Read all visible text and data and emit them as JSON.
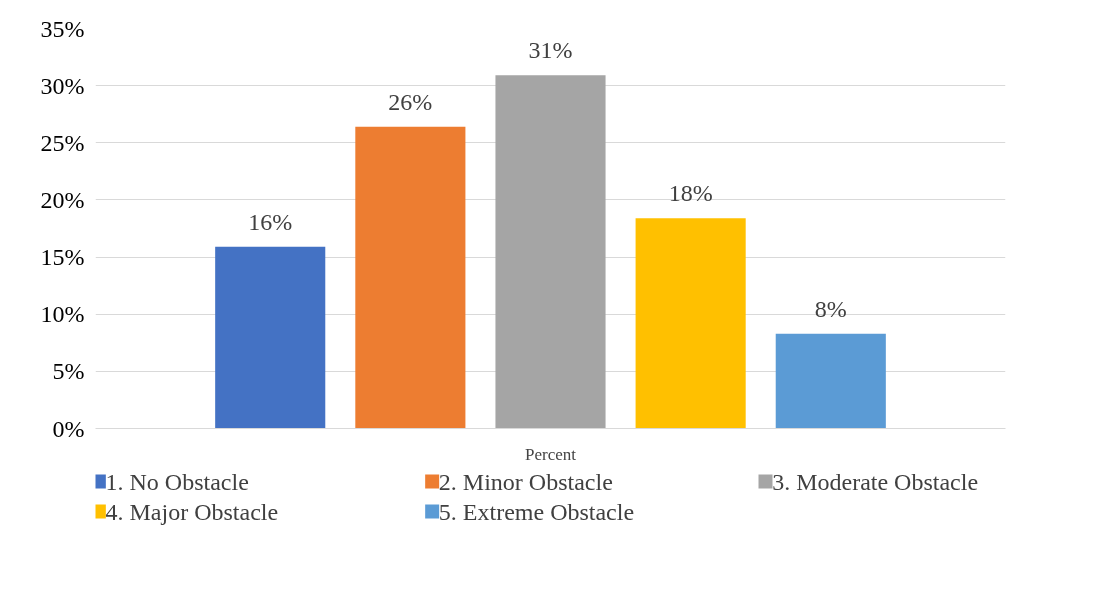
{
  "chart_data": {
    "type": "bar",
    "categories": [
      "Percent"
    ],
    "series": [
      {
        "name": "1. No Obstacle",
        "color": "#4472c4",
        "values": [
          15.9
        ]
      },
      {
        "name": "2. Minor Obstacle",
        "color": "#ed7d31",
        "values": [
          26.4
        ]
      },
      {
        "name": "3. Moderate Obstacle",
        "color": "#a5a5a5",
        "values": [
          30.9
        ]
      },
      {
        "name": "4. Major Obstacle",
        "color": "#ffc000",
        "values": [
          18.4
        ]
      },
      {
        "name": "5. Extreme Obstacle",
        "color": "#5b9bd5",
        "values": [
          8.3
        ]
      }
    ],
    "ylim": [
      0,
      35
    ],
    "yticks": [
      {
        "value": 0,
        "label": "0%"
      },
      {
        "value": 5,
        "label": "5%"
      },
      {
        "value": 10,
        "label": "10%"
      },
      {
        "value": 15,
        "label": "15%"
      },
      {
        "value": 20,
        "label": "20%"
      },
      {
        "value": 25,
        "label": "25%"
      },
      {
        "value": 30,
        "label": "30%"
      },
      {
        "value": 35,
        "label": "35%"
      }
    ],
    "value_labels": [
      "16%",
      "26%",
      "31%",
      "18%",
      "8%"
    ],
    "grid": "y",
    "legend": "bottom"
  }
}
